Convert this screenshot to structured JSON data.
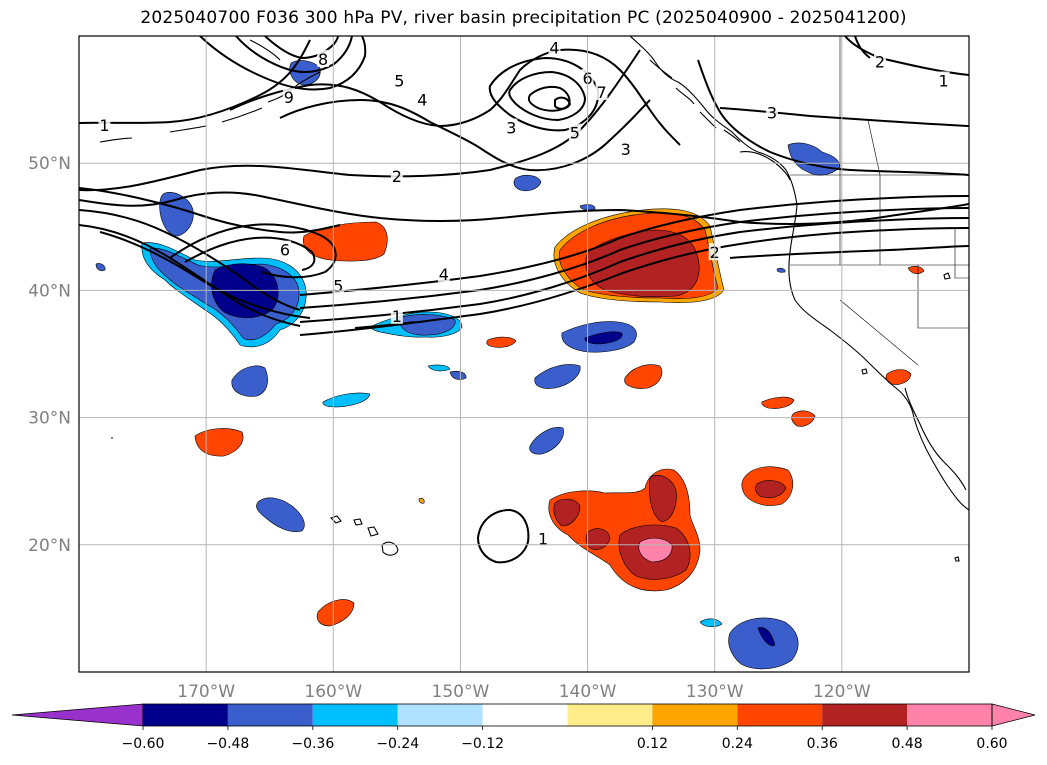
{
  "title": "2025040700 F036 300 hPa PV, river basin precipitation PC (2025040900 - 2025041200)",
  "colors": {
    "neg_extend": "#9932cc",
    "levels": [
      "#00008b",
      "#3a5fcd",
      "#00bfff",
      "#b0e2ff",
      "#ffffff",
      "#ffec8b",
      "#ffa500",
      "#ff4500",
      "#b22222",
      "#ff82ab"
    ],
    "pos_extend": "#ff82ab",
    "contour": "#000000",
    "grid": "#b4b4b4",
    "coast": "#000000"
  },
  "map": {
    "lon_range": [
      -180,
      -110
    ],
    "lat_range": [
      10,
      60
    ],
    "lon_ticks": [
      {
        "value": -170,
        "label": "170°W"
      },
      {
        "value": -160,
        "label": "160°W"
      },
      {
        "value": -150,
        "label": "150°W"
      },
      {
        "value": -140,
        "label": "140°W"
      },
      {
        "value": -130,
        "label": "130°W"
      },
      {
        "value": -120,
        "label": "120°W"
      }
    ],
    "lat_ticks": [
      {
        "value": 20,
        "label": "20°N"
      },
      {
        "value": 30,
        "label": "30°N"
      },
      {
        "value": 40,
        "label": "40°N"
      },
      {
        "value": 50,
        "label": "50°N"
      }
    ],
    "gridlines": true
  },
  "colorbar": {
    "ticks": [
      "−0.60",
      "−0.48",
      "−0.36",
      "−0.24",
      "−0.12",
      "0.12",
      "0.24",
      "0.36",
      "0.48",
      "0.60"
    ]
  },
  "pv_contour_labels": [
    {
      "text": "1",
      "lon": -178,
      "lat": 53
    },
    {
      "text": "1",
      "lon": -112,
      "lat": 56.5
    },
    {
      "text": "1",
      "lon": -155,
      "lat": 38
    },
    {
      "text": "1",
      "lon": -143.5,
      "lat": 20.5
    },
    {
      "text": "2",
      "lon": -155,
      "lat": 49
    },
    {
      "text": "2",
      "lon": -130,
      "lat": 43
    },
    {
      "text": "2",
      "lon": -117,
      "lat": 58
    },
    {
      "text": "3",
      "lon": -146,
      "lat": 52.8
    },
    {
      "text": "3",
      "lon": -137,
      "lat": 51.1
    },
    {
      "text": "3",
      "lon": -125.5,
      "lat": 54
    },
    {
      "text": "4",
      "lon": -153,
      "lat": 55
    },
    {
      "text": "4",
      "lon": -142.6,
      "lat": 59.1
    },
    {
      "text": "4",
      "lon": -151.3,
      "lat": 41.3
    },
    {
      "text": "5",
      "lon": -154.8,
      "lat": 56.5
    },
    {
      "text": "5",
      "lon": -141,
      "lat": 52.4
    },
    {
      "text": "5",
      "lon": -159.6,
      "lat": 40.4
    },
    {
      "text": "6",
      "lon": -140,
      "lat": 56.7
    },
    {
      "text": "6",
      "lon": -163.8,
      "lat": 43.2
    },
    {
      "text": "7",
      "lon": -138.9,
      "lat": 55.6
    },
    {
      "text": "8",
      "lon": -160.8,
      "lat": 58.2
    },
    {
      "text": "9",
      "lon": -163.5,
      "lat": 55.2
    }
  ]
}
